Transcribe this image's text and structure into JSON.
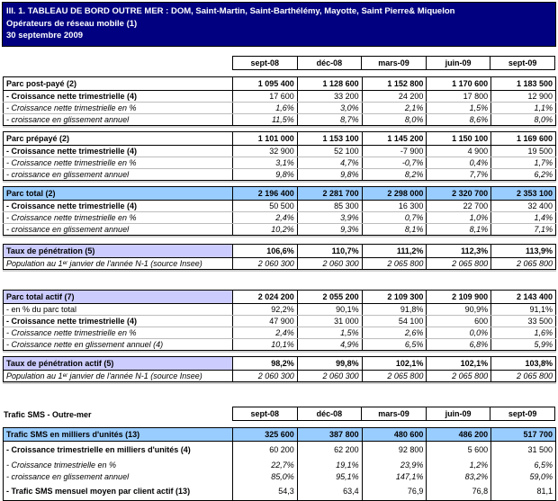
{
  "title": {
    "line1": "III. 1. TABLEAU DE BORD OUTRE MER : DOM, Saint-Martin, Saint-Barthélémy, Mayotte, Saint Pierre& Miquelon",
    "line2": "Opérateurs de réseau mobile (1)",
    "line3": "30 septembre 2009"
  },
  "columns": [
    "sept-08",
    "déc-08",
    "mars-09",
    "juin-09",
    "sept-09"
  ],
  "sms_section_title": "Trafic SMS - Outre-mer",
  "colors": {
    "title_bg": "#000080",
    "highlight_blue": "#99CCFF",
    "highlight_lavender": "#CCCCFF"
  },
  "tables": [
    {
      "id": "parc-post-paye",
      "rows": [
        {
          "label": "Parc post-payé (2)",
          "style": "header",
          "values": [
            "1 095 400",
            "1 128 600",
            "1 152 800",
            "1 170 600",
            "1 183 500"
          ]
        },
        {
          "label": "- Croissance nette trimestrielle (4)",
          "style": "bold",
          "values": [
            "17 600",
            "33 200",
            "24 200",
            "17 800",
            "12 900"
          ]
        },
        {
          "label": "- Croissance nette trimestrielle en %",
          "style": "italic",
          "values": [
            "1,6%",
            "3,0%",
            "2,1%",
            "1,5%",
            "1,1%"
          ]
        },
        {
          "label": "- croissance en glissement annuel",
          "style": "italic",
          "values": [
            "11,5%",
            "8,7%",
            "8,0%",
            "8,6%",
            "8,0%"
          ]
        }
      ]
    },
    {
      "id": "parc-prepaye",
      "rows": [
        {
          "label": "Parc prépayé (2)",
          "style": "header",
          "values": [
            "1 101 000",
            "1 153 100",
            "1 145 200",
            "1 150 100",
            "1 169 600"
          ]
        },
        {
          "label": "- Croissance nette trimestrielle (4)",
          "style": "bold",
          "values": [
            "32 900",
            "52 100",
            "-7 900",
            "4 900",
            "19 500"
          ]
        },
        {
          "label": "- Croissance nette trimestrielle en %",
          "style": "italic",
          "values": [
            "3,1%",
            "4,7%",
            "-0,7%",
            "0,4%",
            "1,7%"
          ]
        },
        {
          "label": "- croissance en glissement annuel",
          "style": "italic",
          "values": [
            "9,8%",
            "9,8%",
            "8,2%",
            "7,7%",
            "6,2%"
          ]
        }
      ]
    },
    {
      "id": "parc-total",
      "rows": [
        {
          "label": "Parc total (2)",
          "style": "header",
          "bg": "blue",
          "values_bg": "blue",
          "values": [
            "2 196 400",
            "2 281 700",
            "2 298 000",
            "2 320 700",
            "2 353 100"
          ]
        },
        {
          "label": "- Croissance nette trimestrielle (4)",
          "style": "bold",
          "values": [
            "50 500",
            "85 300",
            "16 300",
            "22 700",
            "32 400"
          ]
        },
        {
          "label": "- Croissance nette trimestrielle en %",
          "style": "italic",
          "values": [
            "2,4%",
            "3,9%",
            "0,7%",
            "1,0%",
            "1,4%"
          ]
        },
        {
          "label": "- croissance en glissement annuel",
          "style": "italic",
          "values": [
            "10,2%",
            "9,3%",
            "8,1%",
            "8,1%",
            "7,1%"
          ]
        }
      ]
    },
    {
      "id": "taux-penetration",
      "rows": [
        {
          "label": "Taux de pénétration (5)",
          "style": "header",
          "bg": "lavender",
          "values": [
            "106,6%",
            "110,7%",
            "111,2%",
            "112,3%",
            "113,9%"
          ]
        },
        {
          "label": "Population au 1ᵉʳ janvier de l'année N-1 (source Insee)",
          "style": "italic",
          "values": [
            "2 060 300",
            "2 060 300",
            "2 065 800",
            "2 065 800",
            "2 065 800"
          ]
        }
      ]
    },
    {
      "id": "parc-total-actif",
      "rows": [
        {
          "label": "Parc total actif (7)",
          "style": "header",
          "bg": "lavender",
          "values": [
            "2 024 200",
            "2 055 200",
            "2 109 300",
            "2 109 900",
            "2 143 400"
          ]
        },
        {
          "label": "- en % du parc total",
          "style": "regular",
          "values": [
            "92,2%",
            "90,1%",
            "91,8%",
            "90,9%",
            "91,1%"
          ]
        },
        {
          "label": "- Croissance nette trimestrielle (4)",
          "style": "bold",
          "values": [
            "47 900",
            "31 000",
            "54 100",
            "600",
            "33 500"
          ]
        },
        {
          "label": "- Croissance nette trimestrielle en %",
          "style": "italic",
          "values": [
            "2,4%",
            "1,5%",
            "2,6%",
            "0,0%",
            "1,6%"
          ]
        },
        {
          "label": "- Croissance nette en glissement annuel (4)",
          "style": "italic",
          "values": [
            "10,1%",
            "4,9%",
            "6,5%",
            "6,8%",
            "5,9%"
          ]
        }
      ]
    },
    {
      "id": "taux-penetration-actif",
      "rows": [
        {
          "label": "Taux de pénétration actif (5)",
          "style": "header",
          "bg": "lavender",
          "values": [
            "98,2%",
            "99,8%",
            "102,1%",
            "102,1%",
            "103,8%"
          ]
        },
        {
          "label": "Population au 1ᵉʳ janvier de l'année N-1 (source Insee)",
          "style": "italic",
          "values": [
            "2 060 300",
            "2 060 300",
            "2 065 800",
            "2 065 800",
            "2 065 800"
          ]
        }
      ]
    },
    {
      "id": "trafic-sms",
      "rows": [
        {
          "label": "Trafic SMS en milliers d'unités (13)",
          "style": "header",
          "bg": "blue",
          "values_bg": "blue",
          "values": [
            "325 600",
            "387 800",
            "480 600",
            "486 200",
            "517 700"
          ]
        },
        {
          "label": "- Croissance trimestrielle en milliers d'unités (4)",
          "style": "bold",
          "tall": true,
          "values": [
            "60 200",
            "62 200",
            "92 800",
            "5 600",
            "31 500"
          ]
        },
        {
          "label": "- Croissance trimestrielle en %",
          "style": "italic",
          "values": [
            "22,7%",
            "19,1%",
            "23,9%",
            "1,2%",
            "6,5%"
          ]
        },
        {
          "label": "- croissance en glissement annuel",
          "style": "italic",
          "values": [
            "85,0%",
            "95,1%",
            "147,1%",
            "83,2%",
            "59,0%"
          ]
        },
        {
          "label": "- Trafic SMS mensuel moyen par client actif (13)",
          "style": "bold",
          "tall": true,
          "values": [
            "54,3",
            "63,4",
            "76,9",
            "76,8",
            "81,1"
          ]
        }
      ]
    }
  ]
}
